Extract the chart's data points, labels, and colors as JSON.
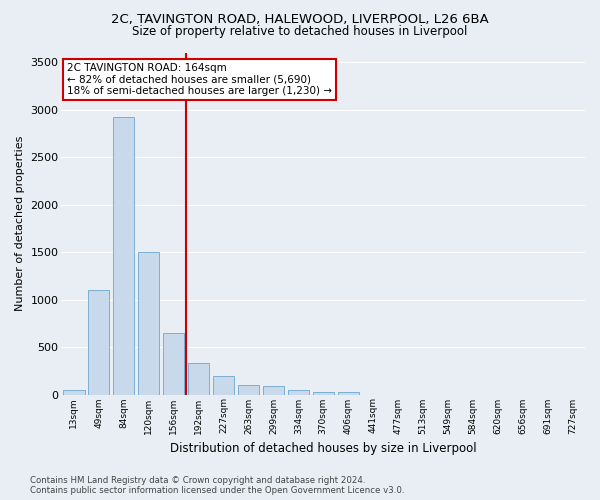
{
  "title_line1": "2C, TAVINGTON ROAD, HALEWOOD, LIVERPOOL, L26 6BA",
  "title_line2": "Size of property relative to detached houses in Liverpool",
  "xlabel": "Distribution of detached houses by size in Liverpool",
  "ylabel": "Number of detached properties",
  "bar_values": [
    50,
    1100,
    2920,
    1500,
    650,
    330,
    190,
    100,
    85,
    45,
    30,
    25,
    0,
    0,
    0,
    0,
    0,
    0,
    0,
    0,
    0
  ],
  "bar_labels": [
    "13sqm",
    "49sqm",
    "84sqm",
    "120sqm",
    "156sqm",
    "192sqm",
    "227sqm",
    "263sqm",
    "299sqm",
    "334sqm",
    "370sqm",
    "406sqm",
    "441sqm",
    "477sqm",
    "513sqm",
    "549sqm",
    "584sqm",
    "620sqm",
    "656sqm",
    "691sqm",
    "727sqm"
  ],
  "bar_color": "#c9d9ec",
  "bar_edge_color": "#7bafd4",
  "bar_width": 0.85,
  "vline_color": "#cc0000",
  "annotation_text": "2C TAVINGTON ROAD: 164sqm\n← 82% of detached houses are smaller (5,690)\n18% of semi-detached houses are larger (1,230) →",
  "annotation_box_color": "white",
  "annotation_box_edge_color": "#cc0000",
  "ylim": [
    0,
    3600
  ],
  "yticks": [
    0,
    500,
    1000,
    1500,
    2000,
    2500,
    3000,
    3500
  ],
  "bg_color": "#e8eef4",
  "grid_color": "white",
  "footnote": "Contains HM Land Registry data © Crown copyright and database right 2024.\nContains public sector information licensed under the Open Government Licence v3.0."
}
